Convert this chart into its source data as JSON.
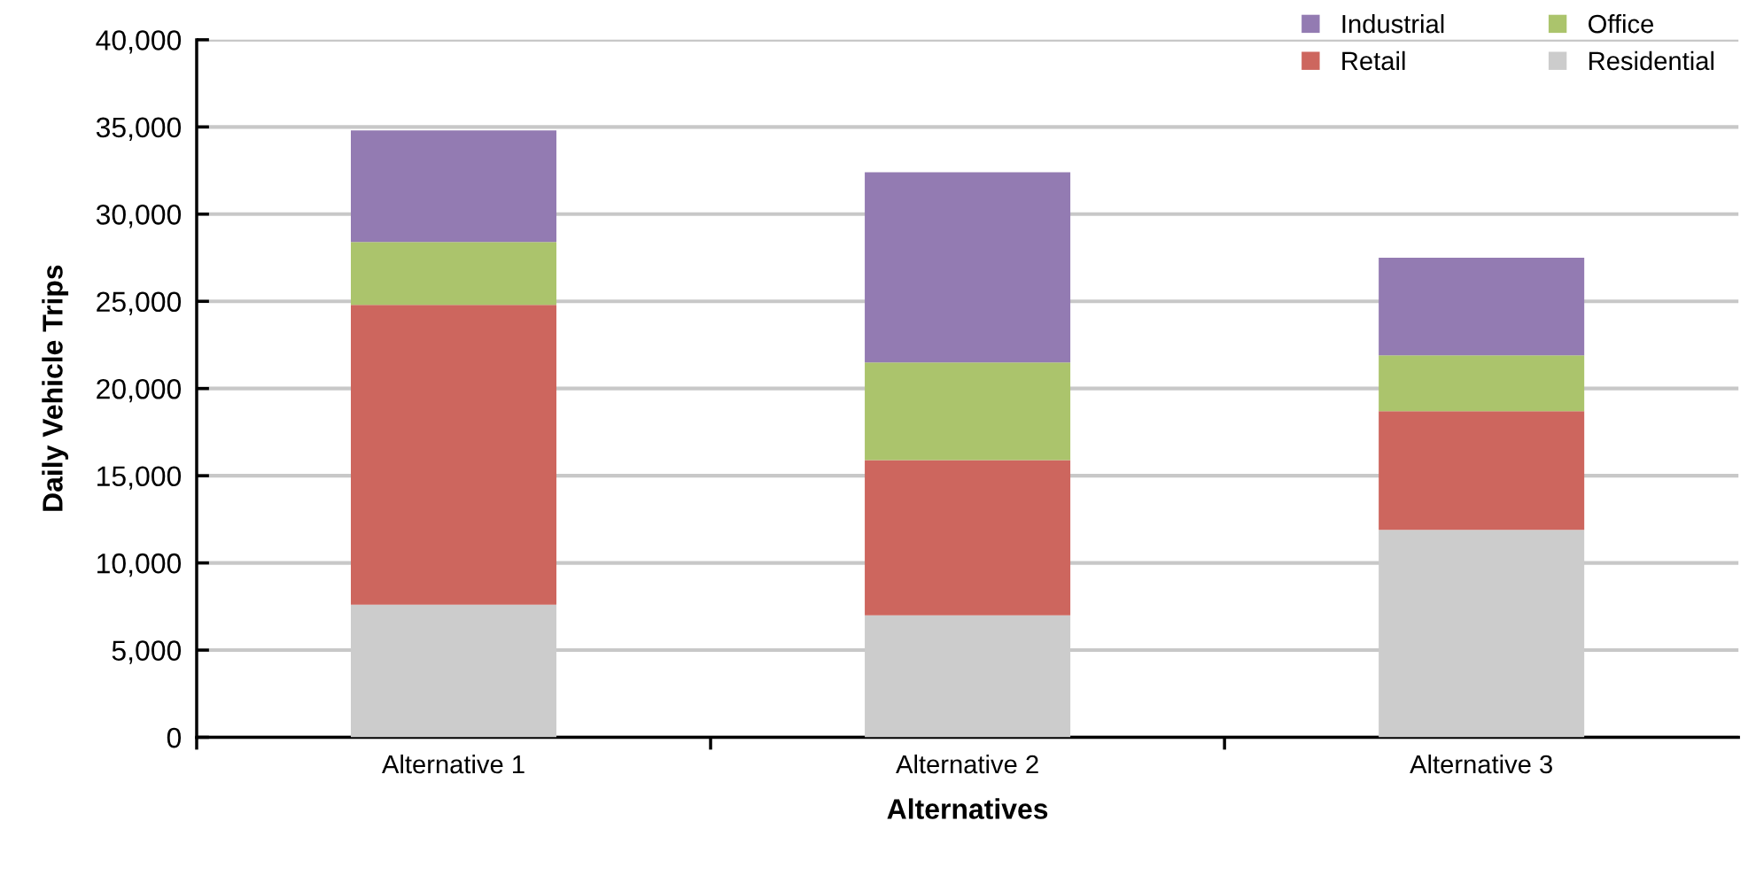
{
  "chart_data": {
    "type": "bar",
    "stacked": true,
    "xlabel": "Alternatives",
    "ylabel": "Daily Vehicle Trips",
    "categories": [
      "Alternative 1",
      "Alternative 2",
      "Alternative 3"
    ],
    "series": [
      {
        "name": "Residential",
        "color": "#cccccc",
        "values": [
          7600,
          7000,
          11900
        ]
      },
      {
        "name": "Retail",
        "color": "#cd665e",
        "values": [
          17200,
          8900,
          6800
        ]
      },
      {
        "name": "Office",
        "color": "#abc46c",
        "values": [
          3600,
          5600,
          3200
        ]
      },
      {
        "name": "Industrial",
        "color": "#937bb2",
        "values": [
          6400,
          10900,
          5600
        ]
      }
    ],
    "ylim": [
      0,
      40000
    ],
    "yticks": [
      {
        "value": 0,
        "label": "0"
      },
      {
        "value": 5000,
        "label": "5,000"
      },
      {
        "value": 10000,
        "label": "10,000"
      },
      {
        "value": 15000,
        "label": "15,000"
      },
      {
        "value": 20000,
        "label": "20,000"
      },
      {
        "value": 25000,
        "label": "25,000"
      },
      {
        "value": 30000,
        "label": "30,000"
      },
      {
        "value": 35000,
        "label": "35,000"
      },
      {
        "value": 40000,
        "label": "40,000"
      }
    ],
    "grid": "y",
    "legend": "top right"
  }
}
